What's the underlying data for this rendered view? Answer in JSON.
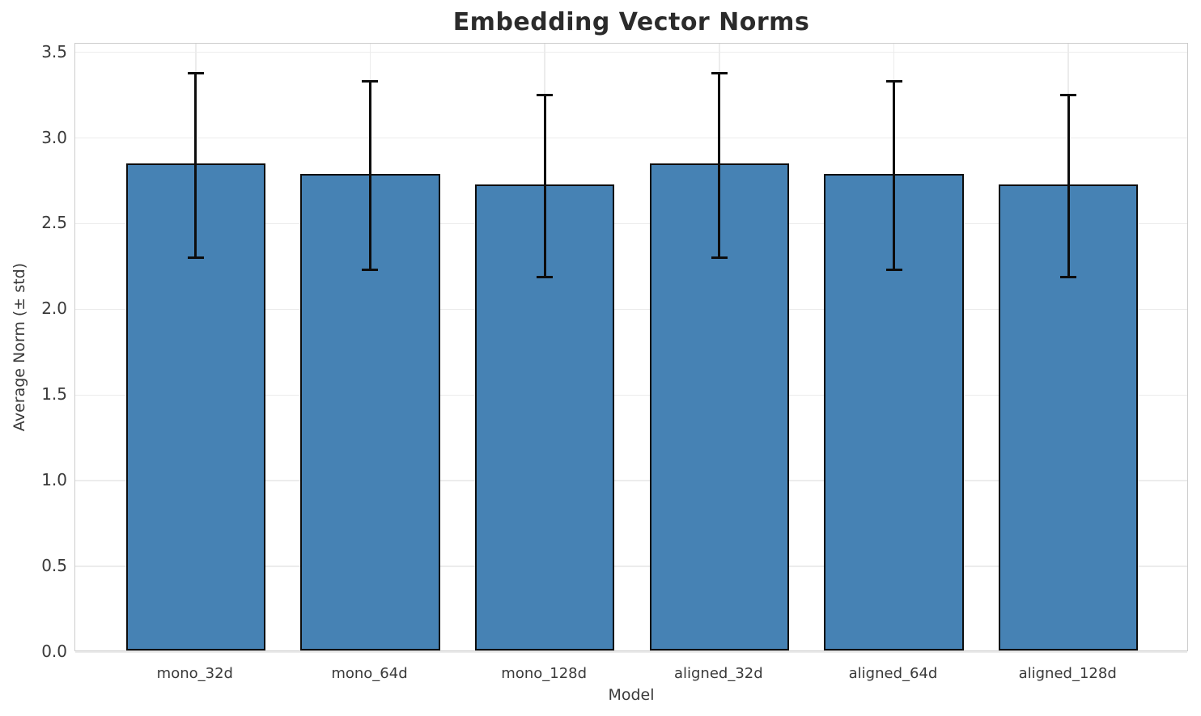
{
  "chart_data": {
    "type": "bar",
    "title": "Embedding Vector Norms",
    "xlabel": "Model",
    "ylabel": "Average Norm (± std)",
    "categories": [
      "mono_32d",
      "mono_64d",
      "mono_128d",
      "aligned_32d",
      "aligned_64d",
      "aligned_128d"
    ],
    "series": [
      {
        "name": "Average Norm",
        "values": [
          2.84,
          2.78,
          2.72,
          2.84,
          2.78,
          2.72
        ],
        "std": [
          0.54,
          0.55,
          0.53,
          0.54,
          0.55,
          0.53
        ]
      }
    ],
    "yticks": [
      0.0,
      0.5,
      1.0,
      1.5,
      2.0,
      2.5,
      3.0,
      3.5
    ],
    "ylim": [
      0,
      3.55
    ],
    "xlim": [
      -0.69,
      5.69
    ],
    "bar_width": 0.8,
    "grid": "both",
    "legend": "none",
    "colors": {
      "bar_fill": "#4682b4",
      "bar_edge": "#0d0d0d",
      "error_bar": "#0d0d0d",
      "gridline": "#ececec",
      "axes_border": "#cccccc",
      "tick_text": "#3a3a3a",
      "title_text": "#2b2b2b",
      "background": "#ffffff"
    }
  }
}
